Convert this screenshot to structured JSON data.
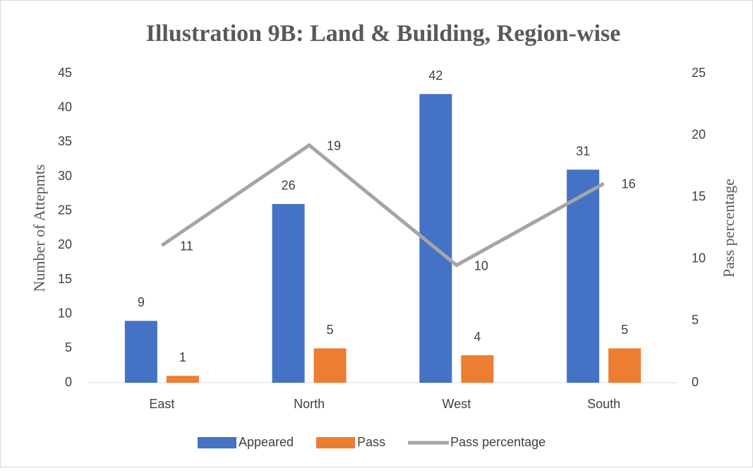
{
  "chart_data": {
    "type": "bar",
    "title": "Illustration 9B: Land & Building, Region-wise",
    "y_label": "Number of Attepmts",
    "y2_label": "Pass percentage",
    "categories": [
      "East",
      "North",
      "West",
      "South"
    ],
    "series": [
      {
        "name": "Appeared",
        "type": "bar",
        "color": "#4472c4",
        "values": [
          9,
          26,
          42,
          31
        ]
      },
      {
        "name": "Pass",
        "type": "bar",
        "color": "#ed7d31",
        "values": [
          1,
          5,
          4,
          5
        ]
      },
      {
        "name": "Pass percentage",
        "type": "line",
        "axis": "y2",
        "color": "#a5a5a5",
        "values": [
          11.1,
          19.2,
          9.5,
          16.1
        ],
        "value_labels": [
          "11",
          "19",
          "10",
          "16"
        ]
      }
    ],
    "ylim": [
      0,
      45
    ],
    "yticks": [
      0,
      5,
      10,
      15,
      20,
      25,
      30,
      35,
      40,
      45
    ],
    "y2lim": [
      0,
      25
    ],
    "y2ticks": [
      0,
      5,
      10,
      15,
      20,
      25
    ],
    "legend": "bottom"
  }
}
